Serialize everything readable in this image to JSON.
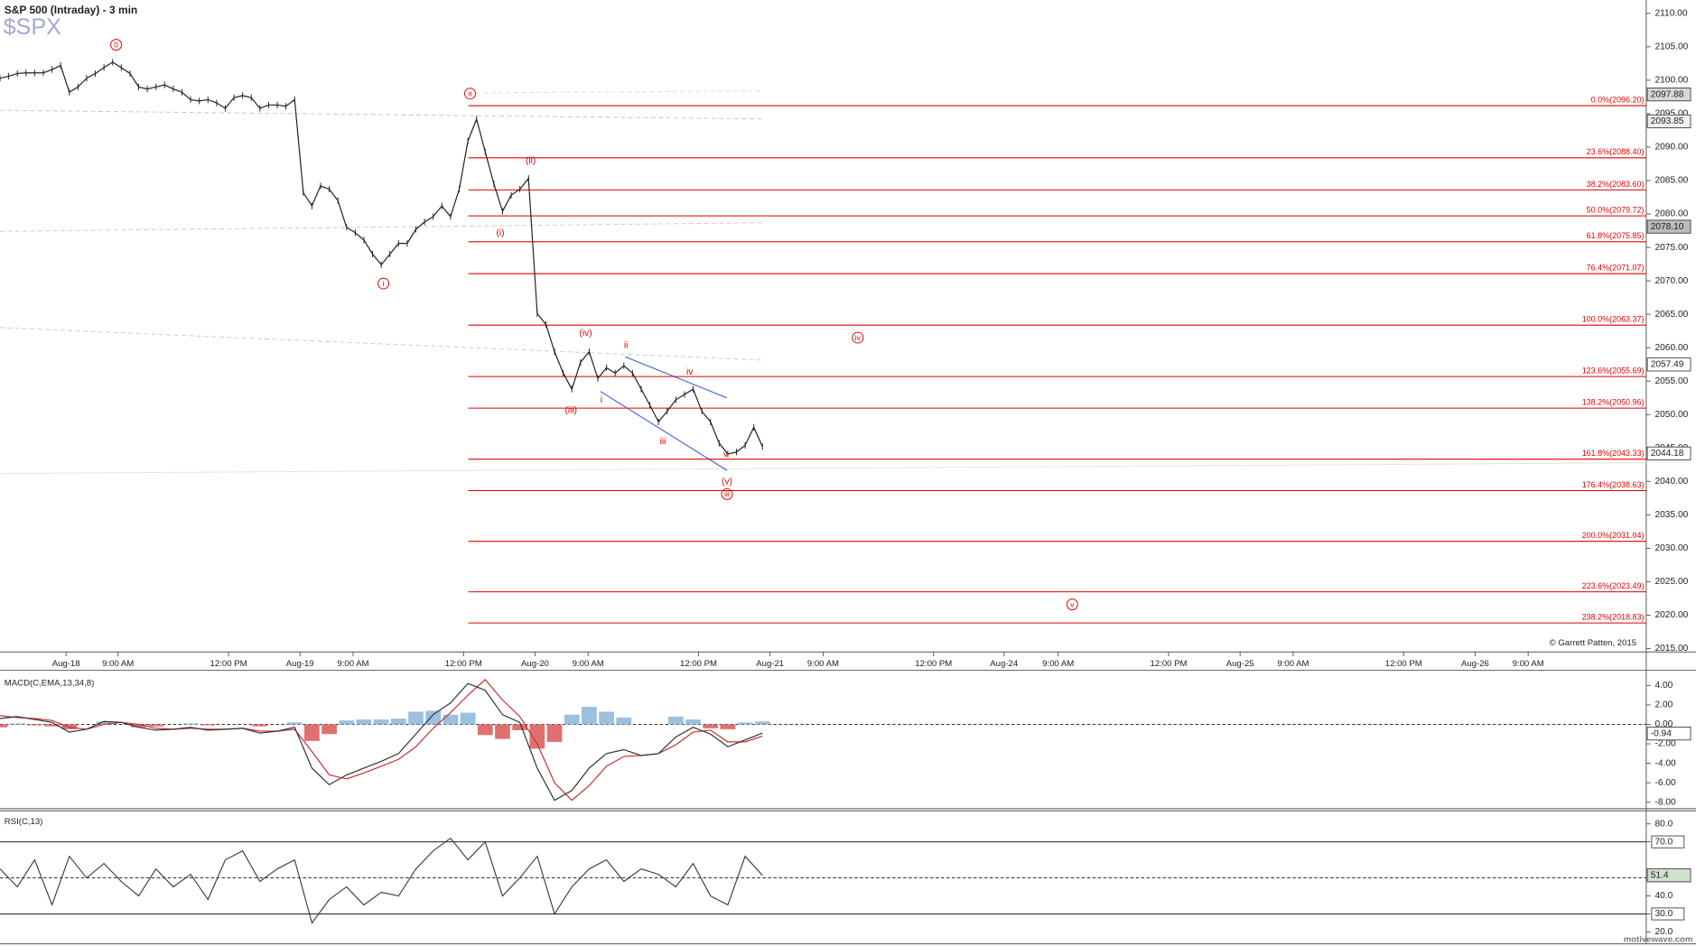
{
  "chart_data": [
    {
      "type": "line",
      "title": "S&P 500 (Intraday) - 3 min",
      "watermark": "$SPX",
      "credit": "© Garrett Patten, 2015",
      "footer": "motivewave.com",
      "values": [
        2100.3,
        2100.6,
        2101,
        2101.1,
        2101.1,
        2101.1,
        2101.6,
        2102.2,
        2098.2,
        2099,
        2100.3,
        2101,
        2101.9,
        2102.7,
        2101.9,
        2101,
        2099,
        2098.7,
        2099,
        2099.3,
        2098.7,
        2098.2,
        2097.1,
        2096.9,
        2097.1,
        2096.6,
        2095.8,
        2097.4,
        2097.7,
        2097.4,
        2095.8,
        2096.3,
        2096.3,
        2096.1,
        2097.1,
        2083.2,
        2081.2,
        2084.2,
        2083.7,
        2082,
        2078,
        2077.2,
        2076.1,
        2074,
        2072.4,
        2074,
        2075.6,
        2075.6,
        2077.7,
        2078.8,
        2079.6,
        2081.2,
        2079.6,
        2083.7,
        2090.9,
        2094.2,
        2089.3,
        2084.5,
        2080.4,
        2082.8,
        2083.7,
        2085.3,
        2065.1,
        2063.5,
        2059.4,
        2056.2,
        2053.8,
        2057.8,
        2059.4,
        2055.4,
        2057,
        2056.2,
        2057.3,
        2056.2,
        2053.8,
        2051.4,
        2048.9,
        2050.5,
        2052.2,
        2053,
        2053.8,
        2050.5,
        2048.9,
        2045.7,
        2044.1,
        2044.4,
        2045.4,
        2048.1,
        2045.2
      ],
      "color": "#222222",
      "grid": false,
      "xlim": [
        0,
        190
      ],
      "xticks": [
        {
          "value": 7.625,
          "label": "Aug-18"
        },
        {
          "value": 13.625,
          "label": "9:00 AM"
        },
        {
          "value": 26.375,
          "label": "12:00 PM"
        },
        {
          "value": 34.625,
          "label": "Aug-19"
        },
        {
          "value": 40.75,
          "label": "9:00 AM"
        },
        {
          "value": 53.5,
          "label": "12:00 PM"
        },
        {
          "value": 61.75,
          "label": "Aug-20"
        },
        {
          "value": 67.875,
          "label": "9:00 AM"
        },
        {
          "value": 80.625,
          "label": "12:00 PM"
        },
        {
          "value": 88.875,
          "label": "Aug-21"
        },
        {
          "value": 95,
          "label": "9:00 AM"
        },
        {
          "value": 107.75,
          "label": "12:00 PM"
        },
        {
          "value": 115.875,
          "label": "Aug-24"
        },
        {
          "value": 122.125,
          "label": "9:00 AM"
        },
        {
          "value": 134.875,
          "label": "12:00 PM"
        },
        {
          "value": 143.125,
          "label": "Aug-25"
        },
        {
          "value": 149.25,
          "label": "9:00 AM"
        },
        {
          "value": 162,
          "label": "12:00 PM"
        },
        {
          "value": 170.25,
          "label": "Aug-26"
        },
        {
          "value": 176.375,
          "label": "9:00 AM"
        }
      ],
      "ylim": [
        2014.5,
        2112
      ],
      "yticks": [
        {
          "value": 2015,
          "label": "2015.00"
        },
        {
          "value": 2020,
          "label": "2020.00"
        },
        {
          "value": 2025,
          "label": "2025.00"
        },
        {
          "value": 2030,
          "label": "2030.00"
        },
        {
          "value": 2035,
          "label": "2035.00"
        },
        {
          "value": 2040,
          "label": "2040.00"
        },
        {
          "value": 2045,
          "label": "2045.00"
        },
        {
          "value": 2050,
          "label": "2050.00"
        },
        {
          "value": 2055,
          "label": "2055.00"
        },
        {
          "value": 2060,
          "label": "2060.00"
        },
        {
          "value": 2065,
          "label": "2065.00"
        },
        {
          "value": 2070,
          "label": "2070.00"
        },
        {
          "value": 2075,
          "label": "2075.00"
        },
        {
          "value": 2080,
          "label": "2080.00"
        },
        {
          "value": 2085,
          "label": "2085.00"
        },
        {
          "value": 2090,
          "label": "2090.00"
        },
        {
          "value": 2095,
          "label": "2095.00"
        },
        {
          "value": 2100,
          "label": "2100.00"
        },
        {
          "value": 2105,
          "label": "2105.00"
        },
        {
          "value": 2110,
          "label": "2110.00"
        }
      ],
      "fib_color": "#e00000",
      "fib_levels": [
        {
          "value": 2096.2,
          "label": "0.0%(2096.20)"
        },
        {
          "value": 2088.4,
          "label": "23.6%(2088.40)"
        },
        {
          "value": 2083.6,
          "label": "38.2%(2083.60)"
        },
        {
          "value": 2079.72,
          "label": "50.0%(2079.72)"
        },
        {
          "value": 2075.85,
          "label": "61.8%(2075.85)"
        },
        {
          "value": 2071.07,
          "label": "76.4%(2071.07)"
        },
        {
          "value": 2063.37,
          "label": "100.0%(2063.37)"
        },
        {
          "value": 2055.69,
          "label": "123.6%(2055.69)"
        },
        {
          "value": 2050.96,
          "label": "138.2%(2050.96)"
        },
        {
          "value": 2043.33,
          "label": "161.8%(2043.33)"
        },
        {
          "value": 2038.63,
          "label": "176.4%(2038.63)"
        },
        {
          "value": 2031.04,
          "label": "200.0%(2031.04)"
        },
        {
          "value": 2023.49,
          "label": "223.6%(2023.49)"
        },
        {
          "value": 2018.83,
          "label": "238.2%(2018.83)"
        }
      ],
      "price_markers": [
        2097.88,
        2093.85,
        {
          "value": 2078.1,
          "label": "2078.10"
        },
        2057.49,
        2044.18
      ],
      "annotation_color": "#e00000",
      "annotations": [
        {
          "text": "0",
          "x": 13.4,
          "y": 2105.3,
          "circled": true
        },
        {
          "text": "i",
          "x": 44.25,
          "y": 2069.6,
          "circled": true
        },
        {
          "text": "ii",
          "x": 54.25,
          "y": 2098.0,
          "circled": true
        },
        {
          "text": "(ii)",
          "x": 61.25,
          "y": 2088.0,
          "circled": false
        },
        {
          "text": "(i)",
          "x": 57.75,
          "y": 2077.2,
          "circled": false
        },
        {
          "text": "(iv)",
          "x": 67.6,
          "y": 2062.2,
          "circled": false
        },
        {
          "text": "(iii)",
          "x": 65.9,
          "y": 2050.7,
          "circled": false
        },
        {
          "text": "ii",
          "x": 72.25,
          "y": 2060.4,
          "circled": false
        },
        {
          "text": "i",
          "x": 69.4,
          "y": 2052.2,
          "circled": false
        },
        {
          "text": "iv",
          "x": 79.6,
          "y": 2056.4,
          "circled": false
        },
        {
          "text": "iii",
          "x": 76.5,
          "y": 2046.0,
          "circled": false
        },
        {
          "text": "v",
          "x": 83.75,
          "y": 2044.1,
          "circled": false
        },
        {
          "text": "(v)",
          "x": 83.9,
          "y": 2040.0,
          "circled": false
        },
        {
          "text": "iii",
          "x": 83.9,
          "y": 2038.1,
          "circled": true
        },
        {
          "text": "iv",
          "x": 99,
          "y": 2061.5,
          "circled": true
        },
        {
          "text": "v",
          "x": 123.75,
          "y": 2021.6,
          "circled": true
        }
      ]
    },
    {
      "type": "macd",
      "title": "MACD(C,EMA,13,34,8)",
      "macd": [
        0.6,
        0.8,
        0.5,
        0.2,
        -0.8,
        -0.5,
        0.3,
        0.2,
        -0.3,
        -0.6,
        -0.5,
        -0.3,
        -0.6,
        -0.5,
        -0.4,
        -0.9,
        -0.7,
        -0.3,
        -4.5,
        -6.2,
        -5.2,
        -4.5,
        -3.8,
        -3.0,
        -1.0,
        1.0,
        2.2,
        4.2,
        3.5,
        1.0,
        0.2,
        -4.5,
        -7.8,
        -6.8,
        -4.5,
        -3.0,
        -2.6,
        -3.2,
        -3.0,
        -1.3,
        -0.3,
        -1.0,
        -2.3,
        -1.6,
        -0.9
      ],
      "signal": [
        0.9,
        0.7,
        0.6,
        0.4,
        -0.3,
        -0.5,
        0,
        0.2,
        0,
        -0.4,
        -0.5,
        -0.4,
        -0.5,
        -0.5,
        -0.4,
        -0.7,
        -0.7,
        -0.5,
        -2.8,
        -5.2,
        -5.6,
        -5.0,
        -4.3,
        -3.6,
        -2.3,
        -0.4,
        1.2,
        3.0,
        4.6,
        2.5,
        0.8,
        -2.0,
        -6.0,
        -7.8,
        -6.3,
        -4.3,
        -3.3,
        -3.2,
        -3.0,
        -2.1,
        -0.8,
        -0.6,
        -1.8,
        -1.8,
        -1.2
      ],
      "histogram": [
        -0.3,
        0.1,
        -0.1,
        -0.2,
        -0.5,
        0,
        0.3,
        0,
        -0.3,
        -0.2,
        0,
        0.1,
        -0.1,
        0,
        0,
        -0.2,
        0,
        0.2,
        -1.7,
        -1.0,
        0.4,
        0.5,
        0.5,
        0.6,
        1.3,
        1.4,
        1.0,
        1.2,
        -1.1,
        -1.5,
        -0.6,
        -2.5,
        -1.8,
        1.0,
        1.8,
        1.3,
        0.7,
        0,
        0,
        0.8,
        0.5,
        -0.4,
        -0.5,
        0.2,
        0.3
      ],
      "macd_color": "#333333",
      "signal_color": "#c83030",
      "positive_color": "#9cc0e0",
      "negative_color": "#e07070",
      "xlim": [
        0,
        95
      ],
      "ylim": [
        -8.67,
        5.56
      ],
      "yticks": [
        {
          "value": 4,
          "label": "4.00"
        },
        {
          "value": 2,
          "label": "2.00"
        },
        {
          "value": 0,
          "label": "0.00"
        },
        {
          "value": -2,
          "label": "-2.00"
        },
        {
          "value": -4,
          "label": "-4.00"
        },
        {
          "value": -6,
          "label": "-6.00"
        },
        {
          "value": -8,
          "label": "-8.00"
        }
      ],
      "zero_line": true,
      "value_marker": -0.94
    },
    {
      "type": "rsi",
      "title": "RSI(C,13)",
      "values": [
        55,
        45,
        60,
        35,
        62,
        50,
        58,
        48,
        40,
        55,
        45,
        52,
        38,
        60,
        65,
        48,
        55,
        60,
        25,
        38,
        45,
        35,
        42,
        40,
        55,
        65,
        72,
        60,
        70,
        40,
        50,
        62,
        30,
        45,
        55,
        60,
        48,
        55,
        52,
        45,
        58,
        40,
        35,
        62,
        51.4
      ],
      "color": "#333333",
      "xlim": [
        0,
        95
      ],
      "ylim": [
        13.4,
        87.2
      ],
      "yticks": [
        {
          "value": 80,
          "label": "80.0"
        },
        {
          "value": 70,
          "label": "70.0"
        },
        {
          "value": 40,
          "label": "40.0"
        },
        {
          "value": 30,
          "label": "30.0"
        },
        {
          "value": 20,
          "label": "20.0"
        }
      ],
      "levels": [
        70,
        30
      ],
      "midline": 50,
      "value_marker": 51.4
    }
  ]
}
